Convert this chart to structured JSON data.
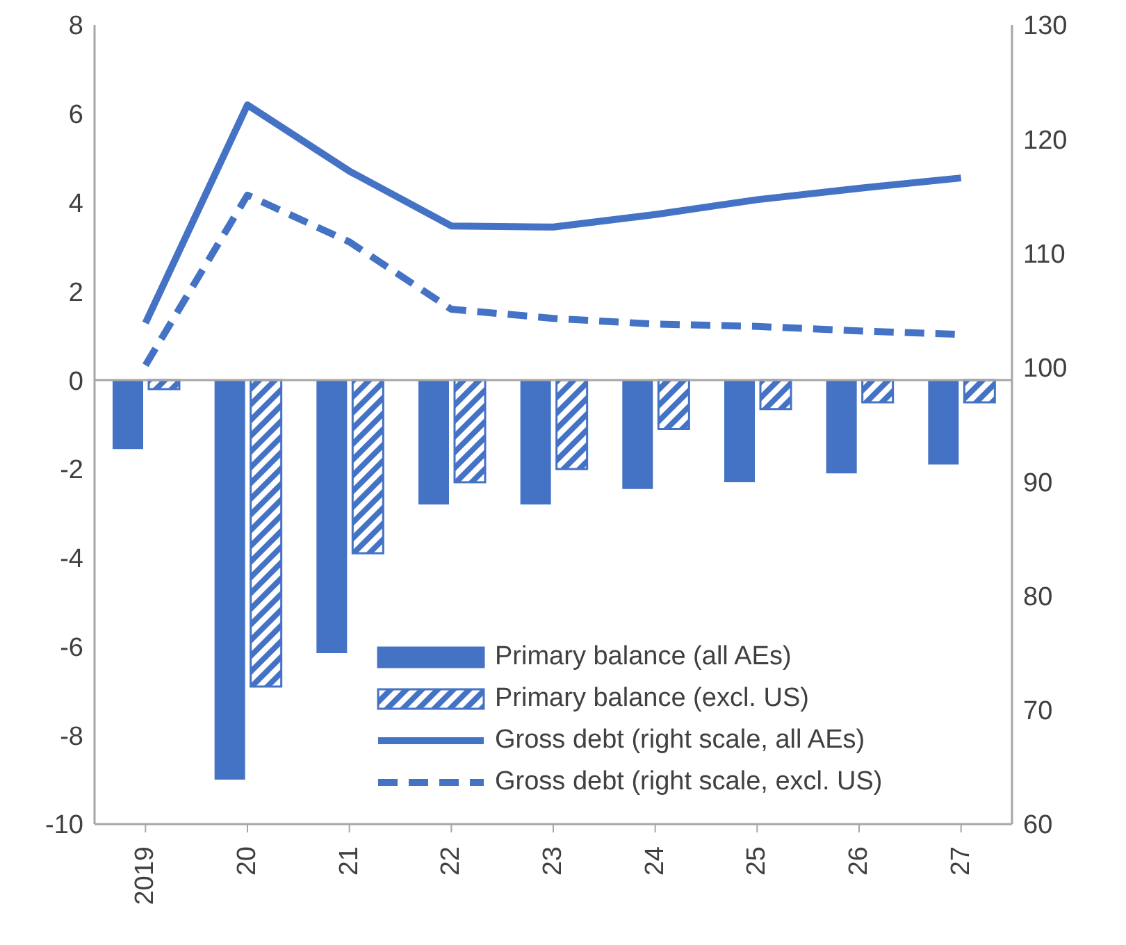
{
  "chart_data": {
    "type": "bar",
    "categories": [
      "2019",
      "20",
      "21",
      "22",
      "23",
      "24",
      "25",
      "26",
      "27"
    ],
    "series": [
      {
        "name": "Primary balance (all AEs)",
        "color": "#4472c4",
        "values": [
          -1.55,
          -9.0,
          -6.15,
          -2.8,
          -2.8,
          -2.45,
          -2.3,
          -2.1,
          -1.9
        ]
      },
      {
        "name": "Primary balance (excl. US)",
        "color": "#4472c4",
        "values": [
          -0.2,
          -6.9,
          -3.9,
          -2.3,
          -2.0,
          -1.1,
          -0.65,
          -0.5,
          -0.5
        ]
      },
      {
        "name": "Gross debt (right scale, all AEs)",
        "type": "line",
        "axis": "y2",
        "line_style": "solid",
        "color": "#4472c4",
        "values": [
          103.9,
          123.0,
          117.2,
          112.4,
          112.3,
          113.4,
          114.7,
          115.7,
          116.6
        ]
      },
      {
        "name": "Gross debt (right scale, excl. US)",
        "type": "line",
        "axis": "y2",
        "line_style": "dashed",
        "color": "#4472c4",
        "values": [
          100.2,
          115.1,
          111.0,
          105.1,
          104.3,
          103.8,
          103.6,
          103.2,
          102.9
        ]
      }
    ],
    "ylim": [
      -10,
      8
    ],
    "yticks": [
      -10,
      -8,
      -6,
      -4,
      -2,
      0,
      2,
      4,
      6,
      8
    ],
    "y2lim": [
      60,
      130
    ],
    "y2ticks": [
      60,
      70,
      80,
      90,
      100,
      110,
      120,
      130
    ],
    "ref_lines": [
      {
        "axis": "y",
        "value": 0,
        "color": "#a6a6a6"
      }
    ],
    "grid": false,
    "legend": "bottom right",
    "marker": "none"
  }
}
